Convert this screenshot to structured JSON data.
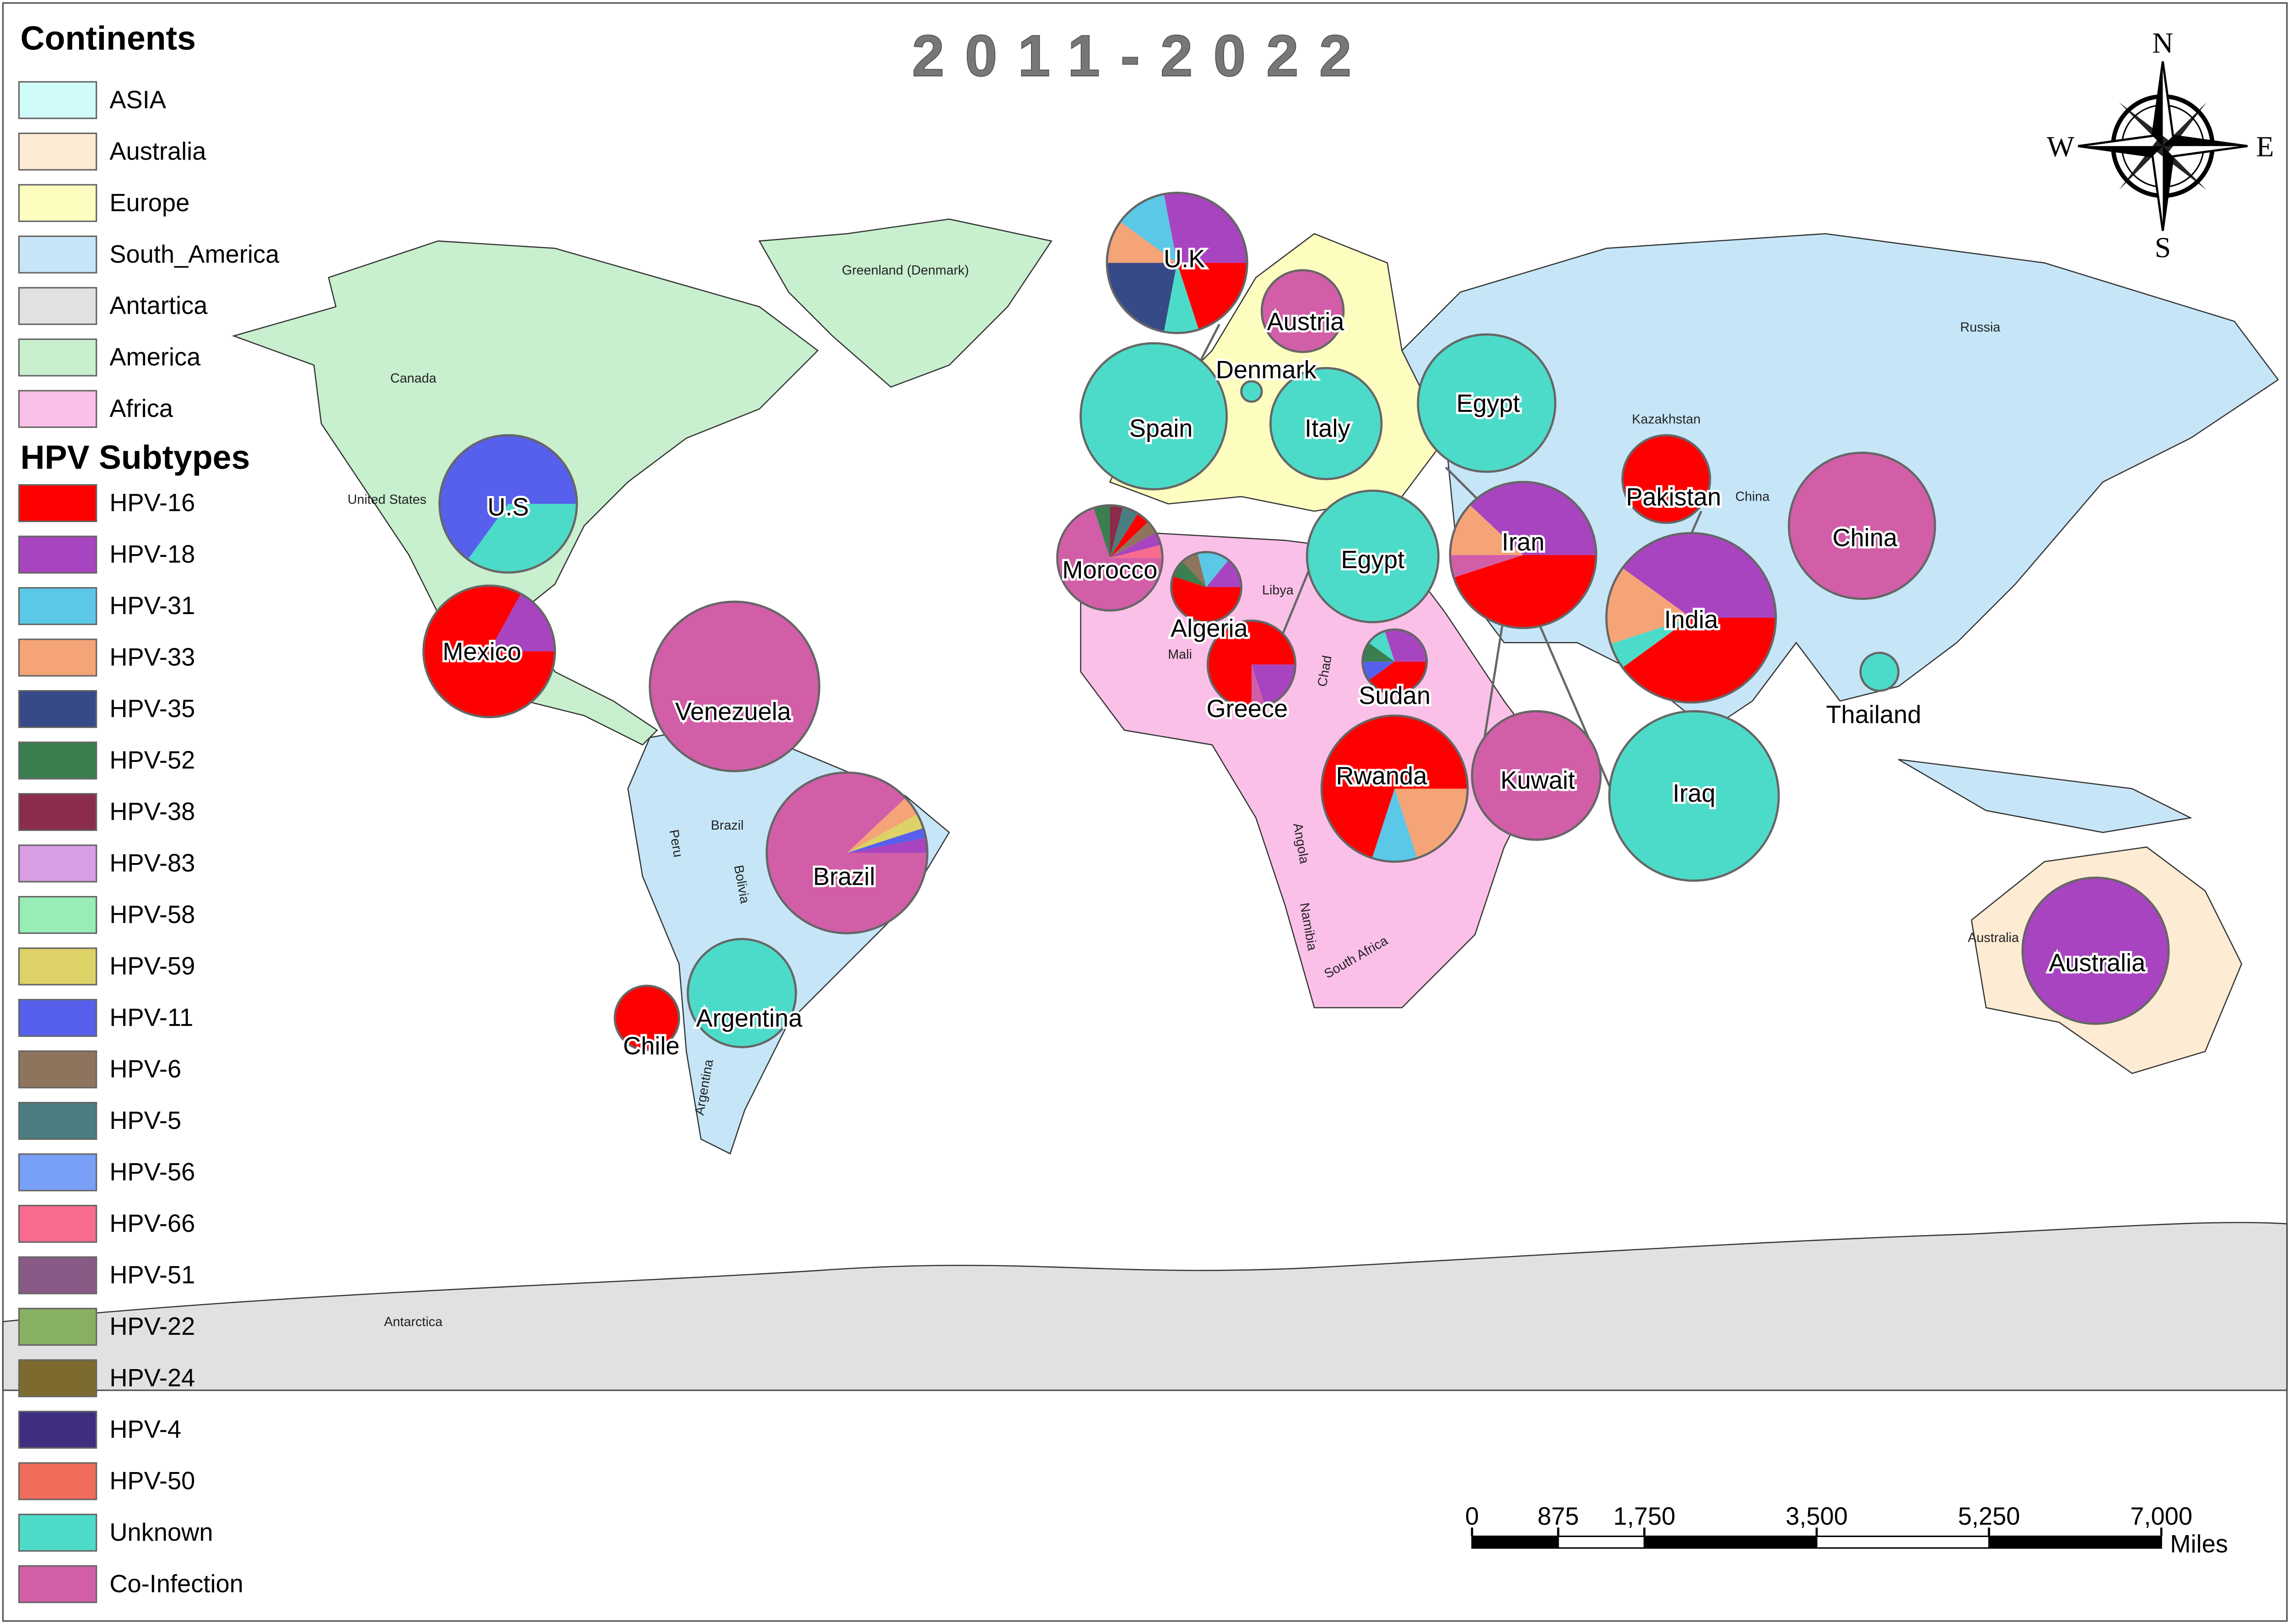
{
  "title": "2011-2022",
  "continents_legend": {
    "title": "Continents",
    "items": [
      {
        "label": "ASIA",
        "color": "#d0fbf8"
      },
      {
        "label": "Australia",
        "color": "#fdebd3"
      },
      {
        "label": "Europe",
        "color": "#fefdc0"
      },
      {
        "label": "South_America",
        "color": "#c6e6f8"
      },
      {
        "label": "Antartica",
        "color": "#e1e1e1"
      },
      {
        "label": "America",
        "color": "#c8efce"
      },
      {
        "label": "Africa",
        "color": "#fbc0e8"
      }
    ]
  },
  "subtypes_legend": {
    "title": "HPV Subtypes",
    "items": [
      {
        "label": "HPV-16",
        "color": "#ff0000"
      },
      {
        "label": "HPV-18",
        "color": "#a844c0"
      },
      {
        "label": "HPV-31",
        "color": "#5bc8e8"
      },
      {
        "label": "HPV-33",
        "color": "#f5a477"
      },
      {
        "label": "HPV-35",
        "color": "#374a88"
      },
      {
        "label": "HPV-52",
        "color": "#3b7f50"
      },
      {
        "label": "HPV-38",
        "color": "#8b2c4a"
      },
      {
        "label": "HPV-83",
        "color": "#d89de3"
      },
      {
        "label": "HPV-58",
        "color": "#98ecb5"
      },
      {
        "label": "HPV-59",
        "color": "#ddd266"
      },
      {
        "label": "HPV-11",
        "color": "#5660ec"
      },
      {
        "label": "HPV-6",
        "color": "#8f745d"
      },
      {
        "label": "HPV-5",
        "color": "#4a7d7f"
      },
      {
        "label": "HPV-56",
        "color": "#77a0f6"
      },
      {
        "label": "HPV-66",
        "color": "#f96b8f"
      },
      {
        "label": "HPV-51",
        "color": "#8a5a86"
      },
      {
        "label": "HPV-22",
        "color": "#88b063"
      },
      {
        "label": "HPV-24",
        "color": "#7c6a2f"
      },
      {
        "label": "HPV-4",
        "color": "#3f2d80"
      },
      {
        "label": "HPV-50",
        "color": "#ef6d5a"
      },
      {
        "label": "Unknown",
        "color": "#4ddbc9"
      },
      {
        "label": "Co-Infection",
        "color": "#d25ea8"
      }
    ]
  },
  "compass": {
    "north": "N",
    "east": "E",
    "south": "S",
    "west": "W"
  },
  "map_labels": [
    "Greenland (Denmark)",
    "Canada",
    "United States",
    "Russia",
    "Kazakhstan",
    "China",
    "Libya",
    "Mali",
    "Chad",
    "Angola",
    "Namibia",
    "South Africa",
    "Brazil",
    "Peru",
    "Bolivia",
    "Argentina",
    "Australia",
    "Antarctica"
  ],
  "pies": [
    {
      "name": "U.K",
      "slices": [
        {
          "color": "#ff0000",
          "value": 20
        },
        {
          "color": "#4ddbc9",
          "value": 8
        },
        {
          "color": "#374a88",
          "value": 22
        },
        {
          "color": "#f5a477",
          "value": 10
        },
        {
          "color": "#5bc8e8",
          "value": 12
        },
        {
          "color": "#a844c0",
          "value": 28
        }
      ]
    },
    {
      "name": "Austria",
      "slices": [
        {
          "color": "#d25ea8",
          "value": 100
        }
      ]
    },
    {
      "name": "Denmark",
      "slices": [
        {
          "color": "#4ddbc9",
          "value": 100
        }
      ]
    },
    {
      "name": "Spain",
      "slices": [
        {
          "color": "#4ddbc9",
          "value": 100
        }
      ]
    },
    {
      "name": "Italy",
      "slices": [
        {
          "color": "#4ddbc9",
          "value": 100
        }
      ]
    },
    {
      "name": "Egypt",
      "slices": [
        {
          "color": "#4ddbc9",
          "value": 100
        }
      ]
    },
    {
      "name": "Pakistan",
      "slices": [
        {
          "color": "#ff0000",
          "value": 100
        }
      ]
    },
    {
      "name": "China",
      "slices": [
        {
          "color": "#d25ea8",
          "value": 100
        }
      ]
    },
    {
      "name": "U.S",
      "slices": [
        {
          "color": "#4ddbc9",
          "value": 35
        },
        {
          "color": "#5660ec",
          "value": 65
        }
      ]
    },
    {
      "name": "Morocco",
      "slices": [
        {
          "color": "#d25ea8",
          "value": 70
        },
        {
          "color": "#3b7f50",
          "value": 5
        },
        {
          "color": "#8b2c4a",
          "value": 4
        },
        {
          "color": "#4a7d7f",
          "value": 5
        },
        {
          "color": "#ff0000",
          "value": 4
        },
        {
          "color": "#8f745d",
          "value": 4
        },
        {
          "color": "#a844c0",
          "value": 4
        },
        {
          "color": "#f96b8f",
          "value": 4
        }
      ]
    },
    {
      "name": "Algeria",
      "slices": [
        {
          "color": "#ff0000",
          "value": 55
        },
        {
          "color": "#3b7f50",
          "value": 8
        },
        {
          "color": "#8f745d",
          "value": 8
        },
        {
          "color": "#5bc8e8",
          "value": 15
        },
        {
          "color": "#a844c0",
          "value": 14
        }
      ]
    },
    {
      "name": "Egypt",
      "slices": [
        {
          "color": "#4ddbc9",
          "value": 100
        }
      ]
    },
    {
      "name": "Iran",
      "slices": [
        {
          "color": "#ff0000",
          "value": 45
        },
        {
          "color": "#d25ea8",
          "value": 5
        },
        {
          "color": "#f5a477",
          "value": 12
        },
        {
          "color": "#a844c0",
          "value": 38
        }
      ]
    },
    {
      "name": "India",
      "slices": [
        {
          "color": "#ff0000",
          "value": 40
        },
        {
          "color": "#4ddbc9",
          "value": 5
        },
        {
          "color": "#f5a477",
          "value": 15
        },
        {
          "color": "#a844c0",
          "value": 40
        }
      ]
    },
    {
      "name": "Mexico",
      "slices": [
        {
          "color": "#ff0000",
          "value": 83
        },
        {
          "color": "#a844c0",
          "value": 17
        }
      ]
    },
    {
      "name": "Venezuela",
      "slices": [
        {
          "color": "#d25ea8",
          "value": 100
        }
      ]
    },
    {
      "name": "Greece",
      "slices": [
        {
          "color": "#a844c0",
          "value": 20
        },
        {
          "color": "#d25ea8",
          "value": 5
        },
        {
          "color": "#ff0000",
          "value": 75
        }
      ]
    },
    {
      "name": "Sudan",
      "slices": [
        {
          "color": "#ff0000",
          "value": 40
        },
        {
          "color": "#5660ec",
          "value": 10
        },
        {
          "color": "#3b7f50",
          "value": 10
        },
        {
          "color": "#4ddbc9",
          "value": 10
        },
        {
          "color": "#a844c0",
          "value": 30
        }
      ]
    },
    {
      "name": "Thailand",
      "slices": [
        {
          "color": "#4ddbc9",
          "value": 100
        }
      ]
    },
    {
      "name": "Rwanda",
      "slices": [
        {
          "color": "#f5a477",
          "value": 20
        },
        {
          "color": "#5bc8e8",
          "value": 10
        },
        {
          "color": "#ff0000",
          "value": 70
        }
      ]
    },
    {
      "name": "Kuwait",
      "slices": [
        {
          "color": "#d25ea8",
          "value": 100
        }
      ]
    },
    {
      "name": "Iraq",
      "slices": [
        {
          "color": "#4ddbc9",
          "value": 100
        }
      ]
    },
    {
      "name": "Brazil",
      "slices": [
        {
          "color": "#d25ea8",
          "value": 88
        },
        {
          "color": "#f5a477",
          "value": 4
        },
        {
          "color": "#ddd266",
          "value": 3
        },
        {
          "color": "#5660ec",
          "value": 2
        },
        {
          "color": "#a844c0",
          "value": 3
        }
      ]
    },
    {
      "name": "Argentina",
      "slices": [
        {
          "color": "#4ddbc9",
          "value": 100
        }
      ]
    },
    {
      "name": "Chile",
      "slices": [
        {
          "color": "#ff0000",
          "value": 100
        }
      ]
    },
    {
      "name": "Australia",
      "slices": [
        {
          "color": "#a844c0",
          "value": 100
        }
      ]
    }
  ],
  "scale_bar": {
    "ticks": [
      0,
      875,
      {
        "value": 1750,
        "label": "1,750"
      },
      {
        "value": 3500,
        "label": "3,500"
      },
      {
        "value": 5250,
        "label": "5,250"
      },
      {
        "value": 7000,
        "label": "7,000"
      }
    ],
    "unit": "Miles"
  }
}
